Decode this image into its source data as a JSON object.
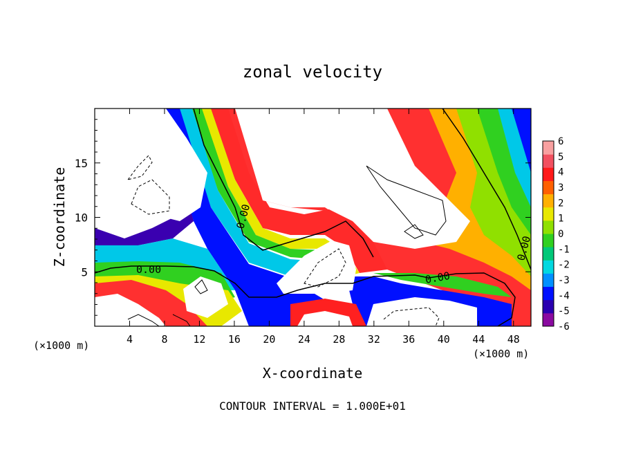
{
  "chart_data": {
    "type": "heatmap",
    "title": "zonal velocity",
    "xlabel": "X-coordinate",
    "ylabel": "Z-coordinate",
    "x_unit_left": "(×1000 m)",
    "x_unit_right": "(×1000 m)",
    "footer": "CONTOUR INTERVAL = 1.000E+01",
    "xlim": [
      0,
      50
    ],
    "ylim": [
      0,
      20
    ],
    "x_ticks": [
      4,
      8,
      12,
      16,
      20,
      24,
      28,
      32,
      36,
      40,
      44,
      48
    ],
    "y_ticks": [
      5,
      10,
      15
    ],
    "colorbar": {
      "range": [
        -6,
        6
      ],
      "ticks": [
        6,
        5,
        4,
        3,
        2,
        1,
        0,
        -1,
        -2,
        -3,
        -4,
        -5,
        -6
      ],
      "colors": [
        "#8a0aa0",
        "#2a00b0",
        "#0010ff",
        "#0090ff",
        "#00d8e0",
        "#00c878",
        "#30d020",
        "#90e000",
        "#e8e800",
        "#ffb000",
        "#ff6000",
        "#ff1a1a",
        "#f25060",
        "#f8a0a0"
      ]
    },
    "contour_labels": [
      {
        "text": "0.00",
        "x": 6.5,
        "z": 5.3,
        "rotate": 0
      },
      {
        "text": "0.00",
        "x": 16.5,
        "z": 10.3,
        "rotate": -75
      },
      {
        "text": "0.00",
        "x": 39.5,
        "z": 4.4,
        "rotate": -10
      },
      {
        "text": "0.00",
        "x": 48.5,
        "z": 7.2,
        "rotate": -75
      }
    ],
    "regions": [
      {
        "name": "upper-left white region",
        "level": "white",
        "polygon": [
          [
            0,
            18
          ],
          [
            0,
            13
          ],
          [
            2,
            11.5
          ],
          [
            6,
            9.5
          ],
          [
            9,
            8.5
          ],
          [
            12,
            9
          ],
          [
            13.5,
            11
          ],
          [
            13,
            14
          ],
          [
            10,
            17
          ],
          [
            7,
            20
          ],
          [
            5,
            20
          ]
        ]
      },
      {
        "name": "lower-left white region",
        "level": "white",
        "polygon": [
          [
            0,
            3
          ],
          [
            3,
            2.5
          ],
          [
            7,
            2
          ],
          [
            10,
            1
          ],
          [
            11,
            0
          ],
          [
            0,
            0
          ]
        ]
      },
      {
        "name": "central-upper white region",
        "level": "white",
        "polygon": [
          [
            16.5,
            20
          ],
          [
            35,
            20
          ],
          [
            37.5,
            15
          ],
          [
            41,
            12
          ],
          [
            43,
            9
          ],
          [
            42,
            7.8
          ],
          [
            38,
            7.5
          ],
          [
            33,
            7
          ],
          [
            32,
            8
          ],
          [
            30,
            9
          ],
          [
            28,
            9.5
          ],
          [
            24,
            9
          ],
          [
            22,
            8.5
          ],
          [
            20,
            10
          ],
          [
            18.5,
            13
          ],
          [
            17,
            17
          ]
        ]
      },
      {
        "name": "central-lower white region",
        "level": "white",
        "polygon": [
          [
            22,
            4
          ],
          [
            25,
            6
          ],
          [
            28,
            7.3
          ],
          [
            30,
            6.5
          ],
          [
            30.5,
            4.5
          ],
          [
            29,
            3.5
          ],
          [
            26,
            3
          ],
          [
            22,
            3
          ]
        ]
      },
      {
        "name": "lower-right white region",
        "level": "white",
        "polygon": [
          [
            32,
            0
          ],
          [
            32,
            2
          ],
          [
            35,
            2.8
          ],
          [
            40,
            2.8
          ],
          [
            43.5,
            2.5
          ],
          [
            44.5,
            1.5
          ],
          [
            43.5,
            0.5
          ],
          [
            40,
            0
          ]
        ]
      },
      {
        "name": "left bubble white region",
        "level": "white",
        "polygon": [
          [
            10,
            2.5
          ],
          [
            11.5,
            4.2
          ],
          [
            13.5,
            4.5
          ],
          [
            15,
            3
          ],
          [
            13.5,
            1.5
          ],
          [
            11,
            1.5
          ]
        ]
      },
      {
        "name": "bottom-center white region",
        "level": "white",
        "polygon": [
          [
            24,
            0
          ],
          [
            24.5,
            1.3
          ],
          [
            27,
            1.6
          ],
          [
            29.5,
            1
          ],
          [
            29.5,
            0
          ]
        ]
      }
    ]
  }
}
